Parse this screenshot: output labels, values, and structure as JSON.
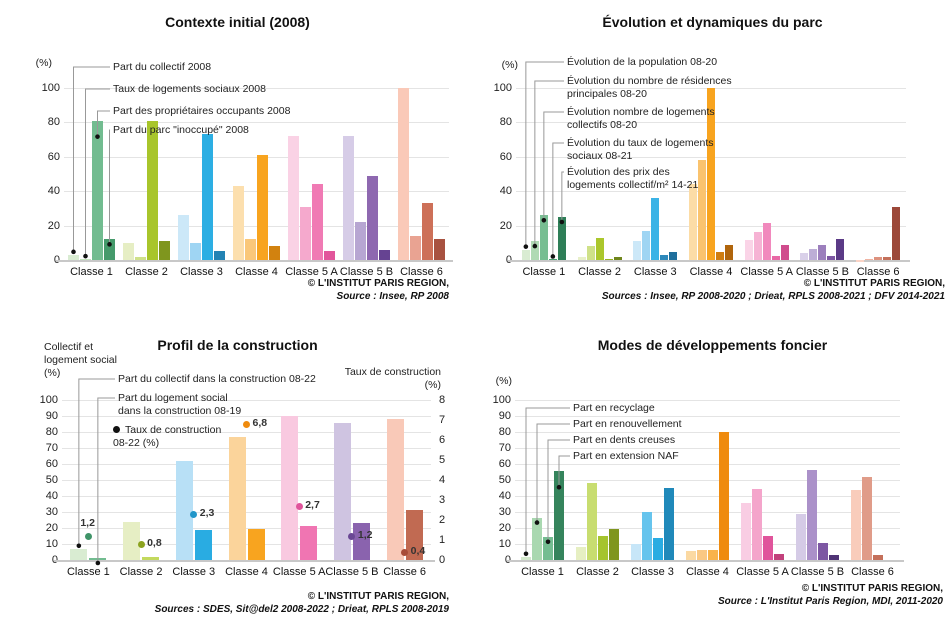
{
  "chart_data": [
    {
      "id": "contexte-initial-2008",
      "type": "bar",
      "title": "Contexte initial (2008)",
      "y_axis_unit": "(%)",
      "ylim": [
        0,
        100
      ],
      "yticks": [
        0,
        20,
        40,
        60,
        80,
        100
      ],
      "categories": [
        "Classe 1",
        "Classe 2",
        "Classe 3",
        "Classe 4",
        "Classe 5 A",
        "Classe 5 B",
        "Classe 6"
      ],
      "legend": [
        "Part du collectif 2008",
        "Taux de logements sociaux 2008",
        "Part des propriétaires occupants 2008",
        "Part du parc \"inoccupé\" 2008"
      ],
      "series": [
        {
          "name": "Part du collectif 2008",
          "values": [
            3,
            10,
            26,
            43,
            72,
            72,
            100
          ],
          "colors": [
            "#d9ecd2",
            "#e6eec4",
            "#cce8f8",
            "#fcdfae",
            "#fad2e5",
            "#d6cce7",
            "#fac9b8"
          ]
        },
        {
          "name": "Taux de logements sociaux 2008",
          "values": [
            0.5,
            2,
            10,
            12,
            31,
            22,
            14
          ],
          "colors": [
            "#c2e3bb",
            "#cfe18a",
            "#9fd5f3",
            "#fac779",
            "#f5a9cd",
            "#b7a6d2",
            "#e9a392"
          ]
        },
        {
          "name": "Part des propriétaires occupants 2008",
          "values": [
            81,
            81,
            73,
            61,
            44,
            49,
            33
          ],
          "colors": [
            "#72bc90",
            "#a8c52b",
            "#2caee3",
            "#f8a41f",
            "#f07ab4",
            "#8e68b0",
            "#cd7058"
          ]
        },
        {
          "name": "Part du parc \"inoccupé\" 2008",
          "values": [
            12,
            11,
            5,
            8,
            5,
            6,
            12
          ],
          "colors": [
            "#459a6b",
            "#7f961e",
            "#2383b4",
            "#d2820f",
            "#e2559b",
            "#664392",
            "#a85240"
          ]
        }
      ],
      "copyright": "© L'INSTITUT PARIS REGION,",
      "source": "Source : Insee, RP 2008"
    },
    {
      "id": "evolution-dynamiques-parc",
      "type": "bar",
      "title": "Évolution et dynamiques du parc",
      "y_axis_unit": "(%)",
      "ylim": [
        0,
        100
      ],
      "yticks": [
        0,
        20,
        40,
        60,
        80,
        100
      ],
      "categories": [
        "Classe 1",
        "Classe 2",
        "Classe 3",
        "Classe 4",
        "Classe 5 A",
        "Classe 5 B",
        "Classe 6"
      ],
      "legend": [
        "Évolution de la population 08-20",
        "Évolution du nombre de résidences\nprincipales 08-20",
        "Évolution nombre de logements\ncollectifs 08-20",
        "Évolution du taux de logements\nsociaux 08-21",
        "Évolution des prix des\nlogements collectif/m² 14-21"
      ],
      "series": [
        {
          "name": "Évolution de la population 08-20",
          "values": [
            6,
            1.5,
            11,
            44,
            11.5,
            4,
            -1
          ],
          "colors": [
            "#d9ecd2",
            "#e8f0c9",
            "#cce8f8",
            "#fcdca6",
            "#fad4e7",
            "#d9d0e9",
            "#fbd3c5"
          ]
        },
        {
          "name": "Évolution du nombre de résidences principales 08-20",
          "values": [
            11,
            8,
            17,
            58,
            16,
            6.5,
            0.5
          ],
          "colors": [
            "#b0dab4",
            "#cfe188",
            "#9fd5f3",
            "#fac36e",
            "#f6b3d4",
            "#bdaed6",
            "#f0b4a3"
          ]
        },
        {
          "name": "Évolution nombre de logements collectifs 08-20",
          "values": [
            26,
            13,
            36,
            100,
            21.5,
            9,
            1.5
          ],
          "colors": [
            "#77be92",
            "#abc72c",
            "#3bb3e6",
            "#f8a41f",
            "#f189bd",
            "#9c7fbd",
            "#dd927e"
          ]
        },
        {
          "name": "Évolution du taux de logements sociaux 08-21",
          "values": [
            0.3,
            0.3,
            3,
            4.5,
            2.5,
            2.5,
            2
          ],
          "colors": [
            "#4fa375",
            "#97b424",
            "#2d89bb",
            "#cf7d10",
            "#e868a5",
            "#7d57a3",
            "#c4705a"
          ]
        },
        {
          "name": "Évolution des prix des logements collectif/m² 14-21",
          "values": [
            25,
            2,
            4.5,
            9,
            8.5,
            12.5,
            31
          ],
          "colors": [
            "#2e7e57",
            "#6f851b",
            "#1f6f9c",
            "#b0650c",
            "#d04c8d",
            "#5b3a86",
            "#9c4839"
          ]
        }
      ],
      "copyright": "© L'INSTITUT PARIS REGION,",
      "source": "Sources : Insee, RP 2008-2020 ; Drieat, RPLS 2008-2021 ; DFV 2014-2021"
    },
    {
      "id": "profil-construction",
      "type": "bar",
      "title": "Profil de la construction",
      "left_axis_title": "Collectif et\nlogement social\n(%)",
      "right_axis_title": "Taux de construction\n(%)",
      "ylim": [
        0,
        100
      ],
      "yticks": [
        0,
        10,
        20,
        30,
        40,
        50,
        60,
        70,
        80,
        90,
        100
      ],
      "right_yticks": [
        0,
        1,
        2,
        3,
        4,
        5,
        6,
        7,
        8
      ],
      "categories": [
        "Classe 1",
        "Classe 2",
        "Classe 3",
        "Classe 4",
        "Classe 5 A",
        "Classe 5 B",
        "Classe 6"
      ],
      "legend": [
        "Part du collectif dans la construction 08-22",
        "Part du logement social\ndans la construction 08-19",
        "Taux de construction\n08-22 (%)"
      ],
      "series": [
        {
          "name": "Part du collectif dans la construction 08-22",
          "values": [
            7,
            24,
            62,
            77,
            90,
            85.5,
            88
          ],
          "colors": [
            "#d9ecd2",
            "#e6eec4",
            "#b8e0f6",
            "#fbd49b",
            "#f9c9e0",
            "#cfc4e1",
            "#f9c9b8"
          ]
        },
        {
          "name": "Part du logement social dans la construction 08-19",
          "values": [
            1,
            2,
            19,
            19.5,
            21.5,
            23,
            31
          ],
          "colors": [
            "#72bc90",
            "#c3d95e",
            "#29ace2",
            "#f8a41f",
            "#f075b2",
            "#8a63ae",
            "#c16a52"
          ]
        }
      ],
      "dot_series": {
        "name": "Taux de construction 08-22 (%)",
        "axis": "right",
        "values": [
          1.2,
          0.8,
          2.3,
          6.8,
          2.7,
          1.2,
          0.4
        ],
        "labels": [
          "1,2",
          "0,8",
          "2,3",
          "6,8",
          "2,7",
          "1,2",
          "0,4"
        ],
        "colors": [
          "#3f9468",
          "#8ca31f",
          "#2196c9",
          "#ef8b0e",
          "#e0549b",
          "#6a4794",
          "#a84c38"
        ]
      },
      "copyright": "© L'INSTITUT PARIS REGION,",
      "source": "Sources : SDES, Sit@del2 2008-2022 ; Drieat, RPLS 2008-2019"
    },
    {
      "id": "modes-developpements-foncier",
      "type": "bar",
      "title": "Modes de développements foncier",
      "y_axis_unit": "(%)",
      "ylim": [
        0,
        100
      ],
      "yticks": [
        0,
        10,
        20,
        30,
        40,
        50,
        60,
        70,
        80,
        90,
        100
      ],
      "categories": [
        "Classe 1",
        "Classe 2",
        "Classe 3",
        "Classe 4",
        "Classe 5 A",
        "Classe 5 B",
        "Classe 6"
      ],
      "legend": [
        "Part en recyclage",
        "Part en renouvellement",
        "Part en dents creuses",
        "Part en extension NAF"
      ],
      "series": [
        {
          "name": "Part en recyclage",
          "values": [
            2,
            8,
            10,
            5.5,
            35.5,
            28.5,
            44
          ],
          "colors": [
            "#d3e9cc",
            "#e6efc2",
            "#c7e6f8",
            "#fbd9a2",
            "#f9cde3",
            "#d5cbe6",
            "#f9ccbb"
          ]
        },
        {
          "name": "Part en renouvellement",
          "values": [
            26.5,
            48,
            30,
            6,
            44.5,
            56,
            52
          ],
          "colors": [
            "#a9d8b0",
            "#c8dd70",
            "#66c4ed",
            "#fac883",
            "#f4a5cb",
            "#ab91c9",
            "#e09c89"
          ]
        },
        {
          "name": "Part en dents creuses",
          "values": [
            14.5,
            15,
            13.5,
            6.5,
            15,
            10.5,
            3
          ],
          "colors": [
            "#74bd91",
            "#a5c42e",
            "#29ace2",
            "#f9b34b",
            "#e0549b",
            "#7d57a3",
            "#c4705a"
          ]
        },
        {
          "name": "Part en extension NAF",
          "values": [
            55.5,
            19.5,
            45,
            80,
            4,
            3,
            0
          ],
          "colors": [
            "#35845c",
            "#7f961e",
            "#2089ba",
            "#ef8b0e",
            "#c2417c",
            "#4f3375",
            "#9c4839"
          ]
        }
      ],
      "copyright": "© L'INSTITUT PARIS REGION,",
      "source": "Source : L'Institut Paris Region, MDI, 2011-2020"
    }
  ]
}
